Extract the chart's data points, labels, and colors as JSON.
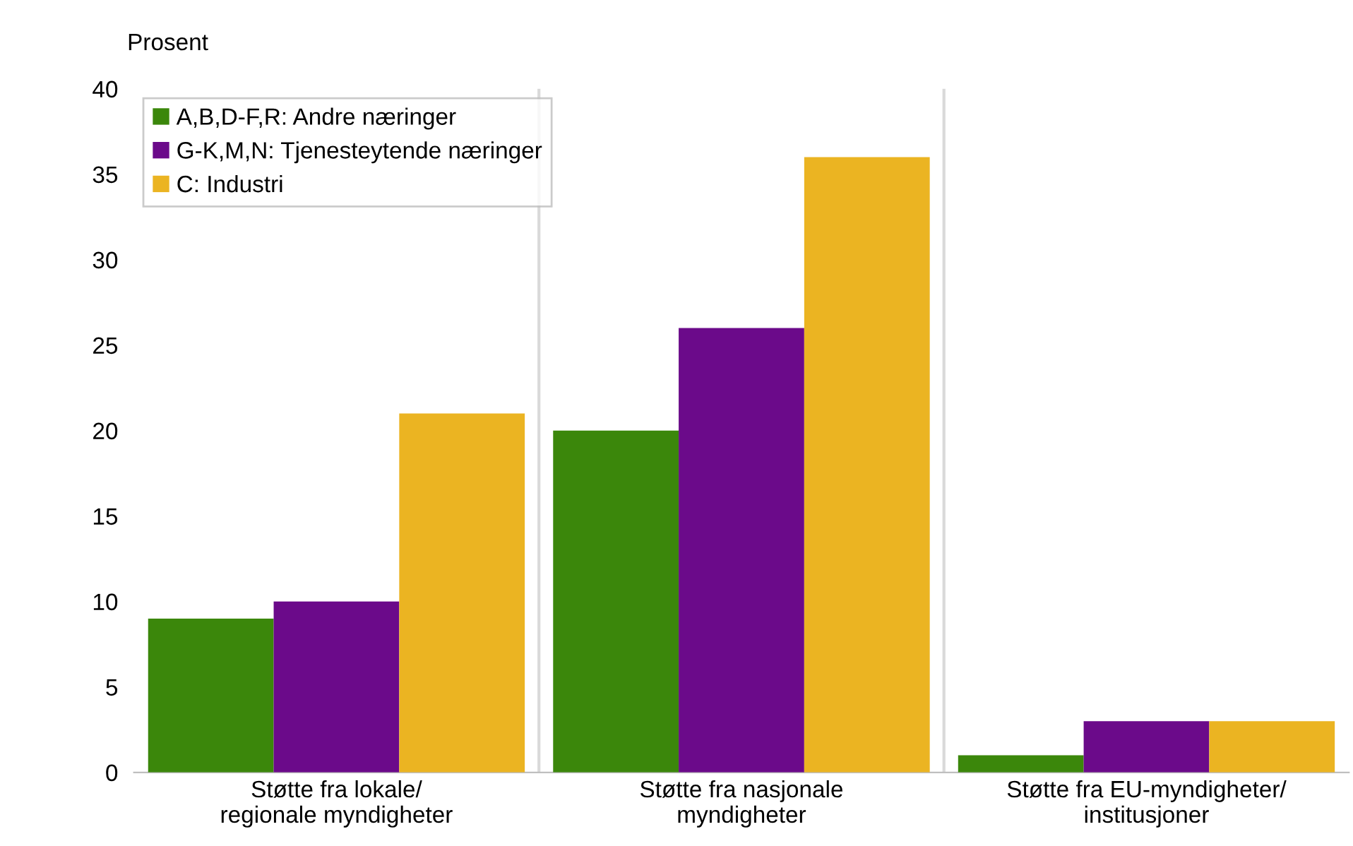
{
  "chart_data": {
    "type": "bar",
    "ylabel": "Prosent",
    "categories": [
      "Støtte fra lokale/\nregionale myndigheter",
      "Støtte fra nasjonale\nmyndigheter",
      "Støtte fra EU-myndigheter/\ninstitusjoner"
    ],
    "series": [
      {
        "name": "A,B,D-F,R: Andre næringer",
        "color": "#3b870b",
        "values": [
          9,
          20,
          1
        ]
      },
      {
        "name": "G-K,M,N: Tjenesteytende næringer",
        "color": "#6b0a8a",
        "values": [
          10,
          26,
          3
        ]
      },
      {
        "name": "C: Industri",
        "color": "#ebb422",
        "values": [
          21,
          36,
          3
        ]
      }
    ],
    "ylim": [
      0,
      40
    ],
    "yticks": [
      0,
      5,
      10,
      15,
      20,
      25,
      30,
      35,
      40
    ],
    "grid": "x",
    "legend": "top left"
  }
}
